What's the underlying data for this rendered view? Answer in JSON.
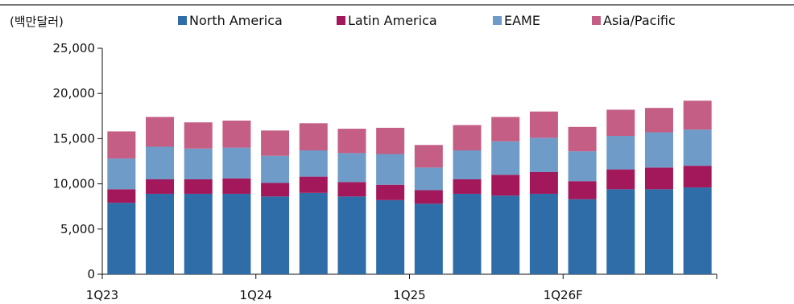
{
  "chart_data": {
    "type": "bar",
    "stacked": true,
    "unit_label": "(백만달러)",
    "x_tick_labels": [
      "1Q23",
      "1Q24",
      "1Q25",
      "1Q26F"
    ],
    "x_tick_label_indices": [
      0,
      4,
      8,
      12
    ],
    "x": [
      "1Q23",
      "2Q23",
      "3Q23",
      "4Q23",
      "1Q24",
      "2Q24",
      "3Q24",
      "4Q24",
      "1Q25",
      "2Q25",
      "3Q25",
      "4Q25",
      "1Q26F",
      "2Q26F",
      "3Q26F",
      "4Q26F"
    ],
    "ylim": [
      0,
      25000
    ],
    "yticks": [
      0,
      5000,
      10000,
      15000,
      20000,
      25000
    ],
    "ytick_labels": [
      "0",
      "5,000",
      "10,000",
      "15,000",
      "20,000",
      "25,000"
    ],
    "legend_position": "top",
    "series": [
      {
        "name": "North America",
        "color": "#2e6da8",
        "values": [
          7900,
          8900,
          8900,
          8900,
          8600,
          9000,
          8600,
          8200,
          7800,
          8900,
          8700,
          8900,
          8300,
          9400,
          9400,
          9600
        ]
      },
      {
        "name": "Latin America",
        "color": "#a3185a",
        "values": [
          1500,
          1600,
          1600,
          1700,
          1500,
          1800,
          1600,
          1700,
          1500,
          1600,
          2300,
          2400,
          2000,
          2200,
          2400,
          2400
        ]
      },
      {
        "name": "EAME",
        "color": "#6e9bc7",
        "values": [
          3400,
          3600,
          3400,
          3400,
          3000,
          2900,
          3200,
          3400,
          2500,
          3200,
          3700,
          3800,
          3300,
          3700,
          3900,
          4000
        ]
      },
      {
        "name": "Asia/Pacific",
        "color": "#c45e85",
        "values": [
          3000,
          3300,
          2900,
          3000,
          2800,
          3000,
          2700,
          2900,
          2500,
          2800,
          2700,
          2900,
          2700,
          2900,
          2700,
          3200
        ]
      }
    ]
  }
}
